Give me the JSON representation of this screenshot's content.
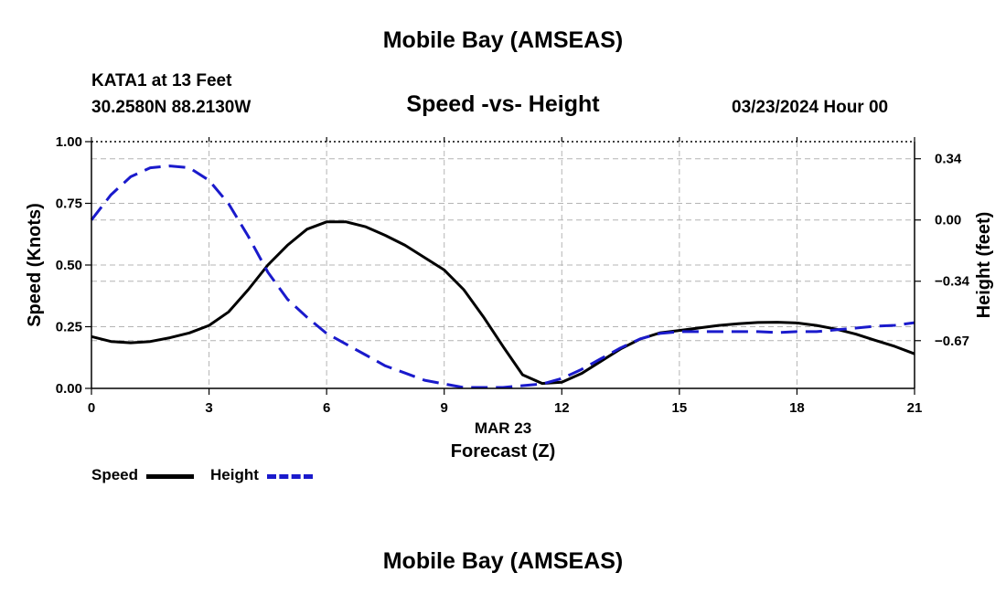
{
  "header": {
    "title": "Mobile Bay (AMSEAS)",
    "station": "KATA1 at 13 Feet",
    "coords": "30.2580N  88.2130W",
    "subtitle": "Speed -vs- Height",
    "datetime": "03/23/2024 Hour 00"
  },
  "footer": {
    "title": "Mobile Bay (AMSEAS)"
  },
  "legend": [
    {
      "label": "Speed",
      "color": "#000000",
      "style": "solid"
    },
    {
      "label": "Height",
      "color": "#1a1acc",
      "style": "dashed"
    }
  ],
  "chart_data": {
    "type": "line",
    "title": "Speed -vs- Height",
    "xlabel": "Forecast (Z)",
    "xsublabel": "MAR 23",
    "ylabel": "Speed (Knots)",
    "y2label": "Height (feet)",
    "xlim": [
      0,
      21
    ],
    "ylim": [
      0,
      1
    ],
    "y2lim": [
      -0.935,
      0.435
    ],
    "xticks": [
      0,
      3,
      6,
      9,
      12,
      15,
      18,
      21
    ],
    "yticks": [
      0.0,
      0.25,
      0.5,
      0.75,
      1.0
    ],
    "ytick_labels": [
      "0.00",
      "0.25",
      "0.50",
      "0.75",
      "1.00"
    ],
    "y2ticks": [
      0.34,
      0.0,
      -0.34,
      -0.67
    ],
    "y2tick_labels": [
      "0.34",
      "0.00",
      "−0.34",
      "−0.67"
    ],
    "grid": true,
    "legend_position": "bottom-left",
    "series": [
      {
        "name": "Speed",
        "axis": "left",
        "color": "#000000",
        "dash": false,
        "x": [
          0,
          0.5,
          1,
          1.5,
          2,
          2.5,
          3,
          3.5,
          4,
          4.5,
          5,
          5.5,
          6,
          6.5,
          7,
          7.5,
          8,
          8.5,
          9,
          9.5,
          10,
          10.5,
          11,
          11.5,
          12,
          12.5,
          13,
          13.5,
          14,
          14.5,
          15,
          15.5,
          16,
          16.5,
          17,
          17.5,
          18,
          18.5,
          19,
          19.5,
          20,
          20.5,
          21
        ],
        "y": [
          0.21,
          0.19,
          0.185,
          0.19,
          0.205,
          0.225,
          0.255,
          0.31,
          0.4,
          0.5,
          0.58,
          0.645,
          0.675,
          0.675,
          0.655,
          0.62,
          0.58,
          0.53,
          0.48,
          0.4,
          0.29,
          0.17,
          0.055,
          0.02,
          0.025,
          0.06,
          0.11,
          0.16,
          0.2,
          0.225,
          0.235,
          0.245,
          0.255,
          0.262,
          0.267,
          0.268,
          0.265,
          0.255,
          0.24,
          0.22,
          0.195,
          0.17,
          0.14
        ]
      },
      {
        "name": "Height",
        "axis": "right",
        "color": "#1a1acc",
        "dash": true,
        "x": [
          0,
          0.5,
          1,
          1.5,
          2,
          2.5,
          3,
          3.5,
          4,
          4.5,
          5,
          5.5,
          6,
          6.5,
          7,
          7.5,
          8,
          8.5,
          9,
          9.5,
          10,
          10.5,
          11,
          11.5,
          12,
          12.5,
          13,
          13.5,
          14,
          14.5,
          15,
          15.5,
          16,
          16.5,
          17,
          17.5,
          18,
          18.5,
          19,
          19.5,
          20,
          20.5,
          21
        ],
        "y": [
          0.0,
          0.14,
          0.24,
          0.29,
          0.3,
          0.29,
          0.22,
          0.09,
          -0.09,
          -0.29,
          -0.44,
          -0.54,
          -0.63,
          -0.69,
          -0.75,
          -0.81,
          -0.85,
          -0.89,
          -0.91,
          -0.93,
          -0.93,
          -0.93,
          -0.92,
          -0.91,
          -0.88,
          -0.83,
          -0.77,
          -0.71,
          -0.66,
          -0.63,
          -0.62,
          -0.62,
          -0.62,
          -0.62,
          -0.62,
          -0.625,
          -0.62,
          -0.62,
          -0.61,
          -0.6,
          -0.59,
          -0.585,
          -0.57
        ]
      }
    ]
  }
}
